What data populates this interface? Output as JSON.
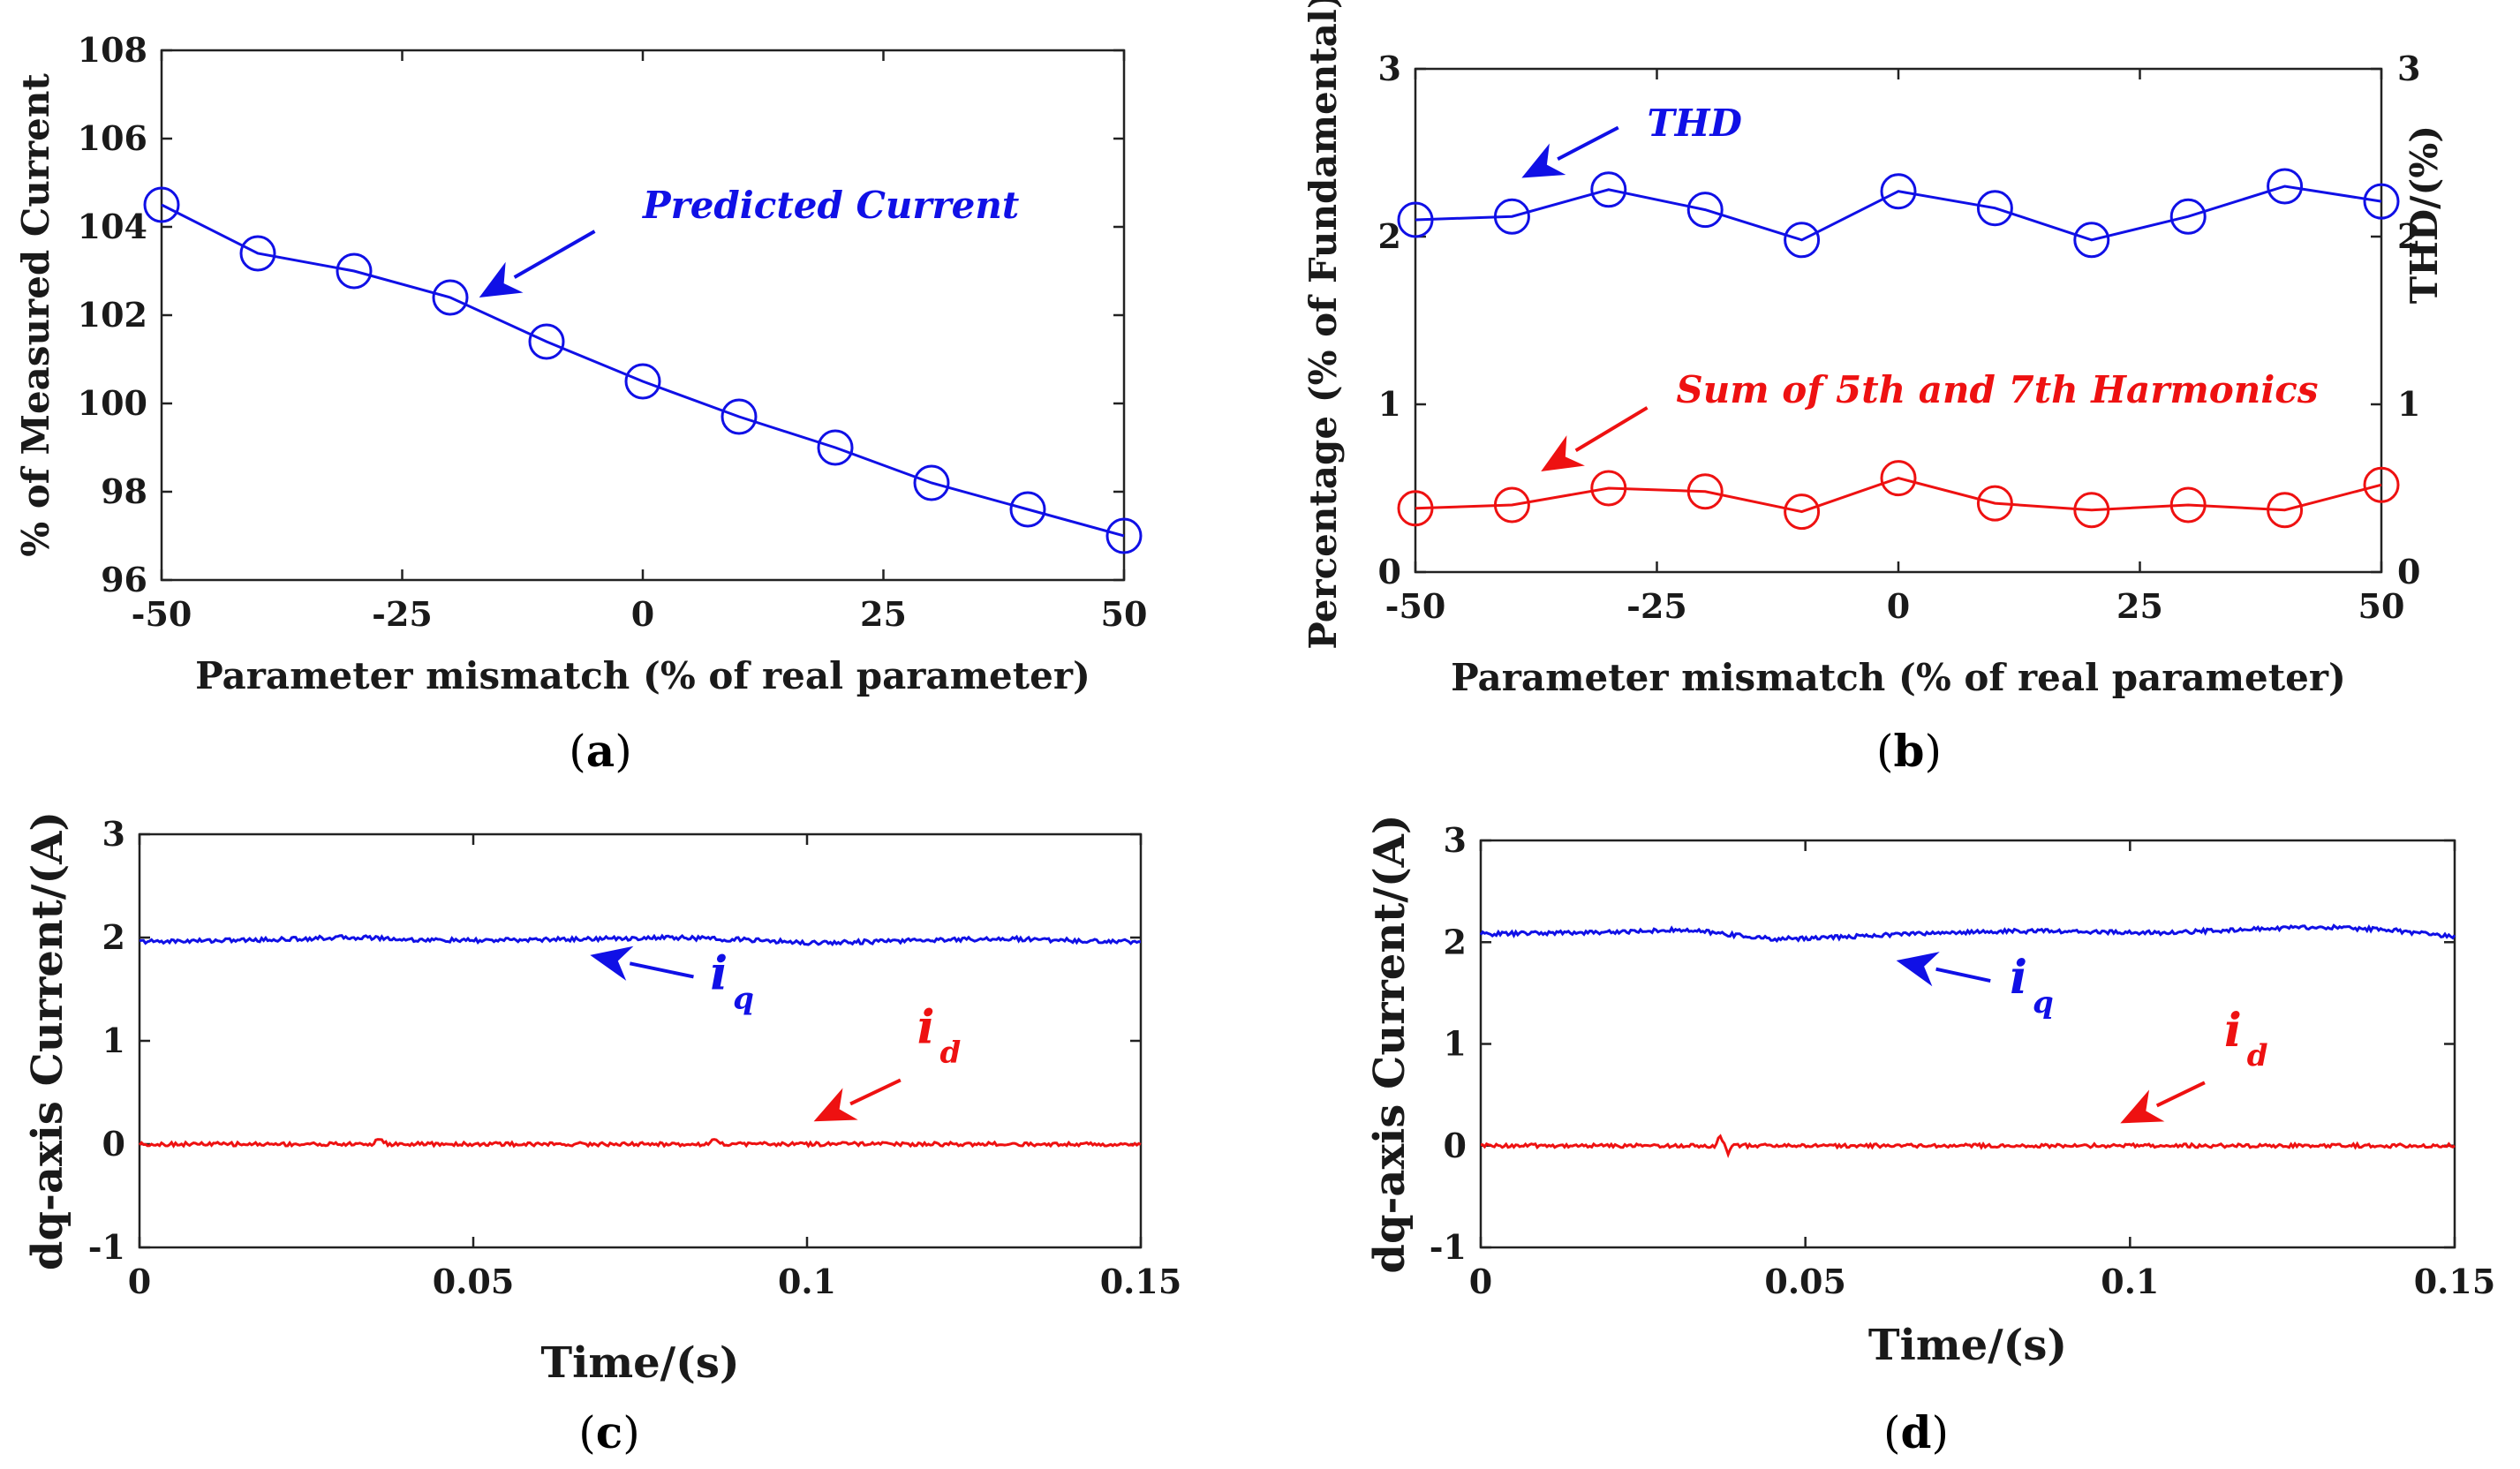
{
  "colors": {
    "blue": "#1010e6",
    "red": "#ee1111",
    "axis": "#222222"
  },
  "chart_data": [
    {
      "id": "a",
      "type": "line",
      "caption_letter": "a",
      "xlabel": "Parameter mismatch (% of real parameter)",
      "ylabel": "% of Measured Current",
      "xlim": [
        -50,
        50
      ],
      "ylim": [
        96,
        108
      ],
      "xticks": [
        -50,
        -25,
        0,
        25,
        50
      ],
      "yticks": [
        96,
        98,
        100,
        102,
        104,
        106,
        108
      ],
      "series": [
        {
          "name": "Predicted Current",
          "color": "blue",
          "marker": "circle",
          "x": [
            -50,
            -40,
            -30,
            -20,
            -10,
            0,
            10,
            20,
            30,
            40,
            50
          ],
          "y": [
            104.5,
            103.4,
            103.0,
            102.4,
            101.4,
            100.5,
            99.7,
            99.0,
            98.2,
            97.6,
            97.0
          ]
        }
      ],
      "annotations": [
        {
          "text": "Predicted Current",
          "color": "blue",
          "text_at": [
            0,
            104.2
          ],
          "arrow_from": [
            -5,
            103.9
          ],
          "arrow_to": [
            -17,
            102.4
          ]
        }
      ]
    },
    {
      "id": "b",
      "type": "line",
      "caption_letter": "b",
      "xlabel": "Parameter mismatch (% of real parameter)",
      "ylabel": "Percentage (% of Fundamental)",
      "ylabel_right": "THD/(%)",
      "xlim": [
        -50,
        50
      ],
      "ylim": [
        0,
        3
      ],
      "ylim_right": [
        0,
        3
      ],
      "xticks": [
        -50,
        -25,
        0,
        25,
        50
      ],
      "yticks": [
        0,
        1,
        2,
        3
      ],
      "series": [
        {
          "name": "THD",
          "color": "blue",
          "marker": "circle",
          "x": [
            -50,
            -40,
            -30,
            -20,
            -10,
            0,
            10,
            20,
            30,
            40,
            50
          ],
          "y": [
            2.1,
            2.12,
            2.28,
            2.16,
            1.98,
            2.27,
            2.17,
            1.98,
            2.12,
            2.3,
            2.21
          ]
        },
        {
          "name": "Sum of 5th and 7th Harmonics",
          "color": "red",
          "marker": "circle",
          "x": [
            -50,
            -40,
            -30,
            -20,
            -10,
            0,
            10,
            20,
            30,
            40,
            50
          ],
          "y": [
            0.38,
            0.4,
            0.5,
            0.48,
            0.36,
            0.56,
            0.41,
            0.37,
            0.4,
            0.37,
            0.52
          ]
        }
      ],
      "annotations": [
        {
          "text": "THD",
          "color": "blue",
          "text_at": [
            -26,
            2.6
          ],
          "arrow_from": [
            -29,
            2.65
          ],
          "arrow_to": [
            -39,
            2.35
          ]
        },
        {
          "text": "Sum of 5th and 7th Harmonics",
          "color": "red",
          "text_at": [
            -23,
            1.01
          ],
          "arrow_from": [
            -26,
            0.98
          ],
          "arrow_to": [
            -37,
            0.6
          ]
        }
      ]
    },
    {
      "id": "c",
      "type": "line",
      "caption_letter": "c",
      "xlabel": "Time/(s)",
      "ylabel": "dq-axis Current/(A)",
      "xlim": [
        0,
        0.15
      ],
      "ylim": [
        -1,
        3
      ],
      "xticks": [
        0,
        0.05,
        0.1,
        0.15
      ],
      "xtick_labels": [
        "0",
        "0.05",
        "0.1",
        "0.15"
      ],
      "yticks": [
        -1,
        0,
        1,
        2,
        3
      ],
      "series": [
        {
          "name": "iq",
          "color": "blue",
          "x": [
            0,
            0.01,
            0.02,
            0.03,
            0.035,
            0.04,
            0.05,
            0.06,
            0.07,
            0.08,
            0.09,
            0.1,
            0.11,
            0.12,
            0.13,
            0.14,
            0.15
          ],
          "y": [
            1.96,
            1.97,
            1.98,
            2.0,
            2.0,
            1.98,
            1.97,
            1.98,
            1.99,
            2.0,
            1.98,
            1.95,
            1.96,
            1.98,
            1.99,
            1.97,
            1.96
          ],
          "ripple": 0.02
        },
        {
          "name": "id",
          "color": "red",
          "x": [
            0,
            0.035,
            0.036,
            0.037,
            0.085,
            0.086,
            0.087,
            0.15
          ],
          "y": [
            0,
            0,
            0.06,
            0,
            0,
            0.06,
            0,
            0
          ],
          "ripple": 0.018
        }
      ],
      "annotations": [
        {
          "symbol": "i",
          "subscript": "q",
          "color": "blue",
          "text_at": [
            0.0855,
            1.5
          ],
          "arrow_from": [
            0.083,
            1.62
          ],
          "arrow_to": [
            0.0675,
            1.83
          ]
        },
        {
          "symbol": "i",
          "subscript": "d",
          "color": "red",
          "text_at": [
            0.1165,
            0.98
          ],
          "arrow_from": [
            0.114,
            0.62
          ],
          "arrow_to": [
            0.101,
            0.22
          ]
        }
      ]
    },
    {
      "id": "d",
      "type": "line",
      "caption_letter": "d",
      "xlabel": "Time/(s)",
      "ylabel": "dq-axis Current/(A)",
      "xlim": [
        0,
        0.15
      ],
      "ylim": [
        -1,
        3
      ],
      "xticks": [
        0,
        0.05,
        0.1,
        0.15
      ],
      "xtick_labels": [
        "0",
        "0.05",
        "0.1",
        "0.15"
      ],
      "yticks": [
        -1,
        0,
        1,
        2,
        3
      ],
      "series": [
        {
          "name": "iq",
          "color": "blue",
          "x": [
            0,
            0.01,
            0.02,
            0.03,
            0.035,
            0.045,
            0.055,
            0.065,
            0.075,
            0.085,
            0.095,
            0.105,
            0.115,
            0.125,
            0.13,
            0.14,
            0.15
          ],
          "y": [
            2.08,
            2.09,
            2.1,
            2.12,
            2.1,
            2.03,
            2.05,
            2.08,
            2.1,
            2.11,
            2.1,
            2.09,
            2.12,
            2.14,
            2.15,
            2.12,
            2.05
          ],
          "ripple": 0.02
        },
        {
          "name": "id",
          "color": "red",
          "x": [
            0,
            0.036,
            0.037,
            0.038,
            0.039,
            0.04,
            0.15
          ],
          "y": [
            0,
            0,
            0.1,
            -0.08,
            0.02,
            0,
            0
          ],
          "ripple": 0.018
        }
      ],
      "annotations": [
        {
          "symbol": "i",
          "subscript": "q",
          "color": "blue",
          "text_at": [
            0.0815,
            1.5
          ],
          "arrow_from": [
            0.0785,
            1.62
          ],
          "arrow_to": [
            0.064,
            1.82
          ]
        },
        {
          "symbol": "i",
          "subscript": "d",
          "color": "red",
          "text_at": [
            0.1145,
            0.98
          ],
          "arrow_from": [
            0.1115,
            0.62
          ],
          "arrow_to": [
            0.0985,
            0.22
          ]
        }
      ]
    }
  ]
}
